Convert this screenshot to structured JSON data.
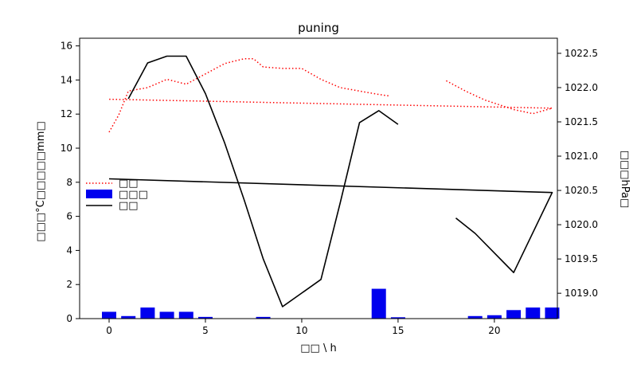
{
  "chart_data": {
    "type": "line+bar",
    "title": "puning",
    "xlabel": "□□ \\ h",
    "ylabel_left": "□□□°C□□□□□mm□",
    "ylabel_right": "□□□hPa□",
    "xlim": [
      -1.53,
      23.27
    ],
    "ylim_left": [
      0,
      16.45
    ],
    "ylim_right": [
      1018.63,
      1022.72
    ],
    "x_ticks": [
      0,
      5,
      10,
      15,
      20
    ],
    "y_ticks_left": [
      0,
      2,
      4,
      6,
      8,
      10,
      12,
      14,
      16
    ],
    "y_ticks_right": [
      "1019.0",
      "1019.5",
      "1020.0",
      "1020.5",
      "1021.0",
      "1021.5",
      "1022.0",
      "1022.5"
    ],
    "grid": false,
    "legend_position": "center-left",
    "legend": [
      {
        "label": "□□",
        "style": "pressure-dotted-red"
      },
      {
        "label": "□□□",
        "style": "precipitation-bar-blue"
      },
      {
        "label": "□□",
        "style": "temperature-line-black"
      }
    ],
    "colors": {
      "precipitation": "#0000ee",
      "temperature": "#000000",
      "pressure": "#ff0000",
      "axis": "#000000",
      "background": "#ffffff"
    },
    "series": {
      "temperature_c": {
        "type": "line",
        "axis": "left",
        "segments": [
          [
            [
              1,
              12.9
            ],
            [
              2,
              15.0
            ],
            [
              3,
              15.4
            ],
            [
              4,
              15.4
            ],
            [
              5,
              13.2
            ],
            [
              6,
              10.3
            ],
            [
              7,
              7.0
            ],
            [
              8,
              3.5
            ],
            [
              9,
              0.7
            ],
            [
              10,
              1.5
            ],
            [
              11,
              2.3
            ],
            [
              12,
              6.8
            ],
            [
              13,
              11.5
            ],
            [
              14,
              12.2
            ],
            [
              15,
              11.4
            ]
          ],
          [
            [
              18,
              5.9
            ],
            [
              19,
              5.0
            ],
            [
              21,
              2.7
            ],
            [
              23,
              7.4
            ],
            [
              0,
              8.2
            ]
          ]
        ]
      },
      "pressure_hpa": {
        "type": "dotted-line",
        "axis": "right",
        "segments": [
          [
            [
              0,
              1021.35
            ],
            [
              0.5,
              1021.6
            ],
            [
              1,
              1021.95
            ],
            [
              2,
              1022.0
            ],
            [
              3,
              1022.12
            ],
            [
              4,
              1022.05
            ],
            [
              5,
              1022.2
            ],
            [
              6,
              1022.35
            ],
            [
              7,
              1022.42
            ],
            [
              7.5,
              1022.42
            ],
            [
              8,
              1022.3
            ],
            [
              9,
              1022.28
            ],
            [
              10,
              1022.28
            ],
            [
              11,
              1022.12
            ],
            [
              12,
              1022.0
            ],
            [
              13,
              1021.95
            ],
            [
              14,
              1021.9
            ],
            [
              14.5,
              1021.88
            ]
          ],
          [
            [
              17.5,
              1022.1
            ],
            [
              18.5,
              1021.95
            ],
            [
              19.5,
              1021.82
            ],
            [
              21,
              1021.68
            ],
            [
              22,
              1021.62
            ],
            [
              23,
              1021.7
            ],
            [
              0,
              1021.83
            ]
          ]
        ]
      },
      "precipitation_mm": {
        "type": "bar",
        "axis": "left",
        "points": [
          [
            0,
            0.4
          ],
          [
            1,
            0.15
          ],
          [
            2,
            0.65
          ],
          [
            3,
            0.4
          ],
          [
            4,
            0.4
          ],
          [
            5,
            0.1
          ],
          [
            8,
            0.1
          ],
          [
            14,
            1.75
          ],
          [
            15,
            0.08
          ],
          [
            19,
            0.15
          ],
          [
            20,
            0.2
          ],
          [
            21,
            0.5
          ],
          [
            22,
            0.65
          ],
          [
            23,
            0.65
          ]
        ]
      }
    }
  }
}
